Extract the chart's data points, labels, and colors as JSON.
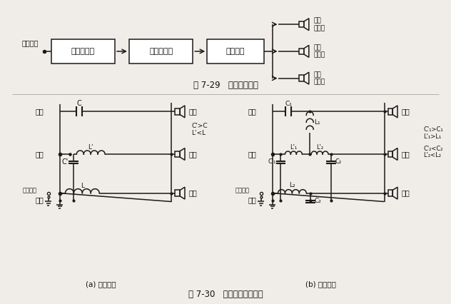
{
  "bg_color": "#f0ede8",
  "line_color": "#1a1a1a",
  "text_color": "#111111",
  "fig_caption1": "图 7-29   功率分频方式",
  "fig_caption2": "图 7-30   三分频功率分频器",
  "sub_caption_a": "(a) 单元件型",
  "sub_caption_b": "(b) 双元件型",
  "box1": "前置放大器",
  "box2": "功率放大器",
  "box3": "分频网络",
  "signal_in": "信号输入",
  "high_speaker": "高音\n扬声器",
  "mid_speaker": "中音\n扬声器",
  "low_speaker": "低音\n扬声器",
  "high_label": "高通",
  "band_label": "带通",
  "from_amp": "从功放来",
  "low_label": "低通",
  "high_sound": "高音",
  "mid_sound": "中音",
  "low_sound": "低音",
  "note_a": "C'>C\nL'<L",
  "note_b_line1": "C'₁>C₁",
  "note_b_line2": "L'₁>L₁",
  "note_b_line3": "C'₂<C₂",
  "note_b_line4": "L'₂<L₂"
}
